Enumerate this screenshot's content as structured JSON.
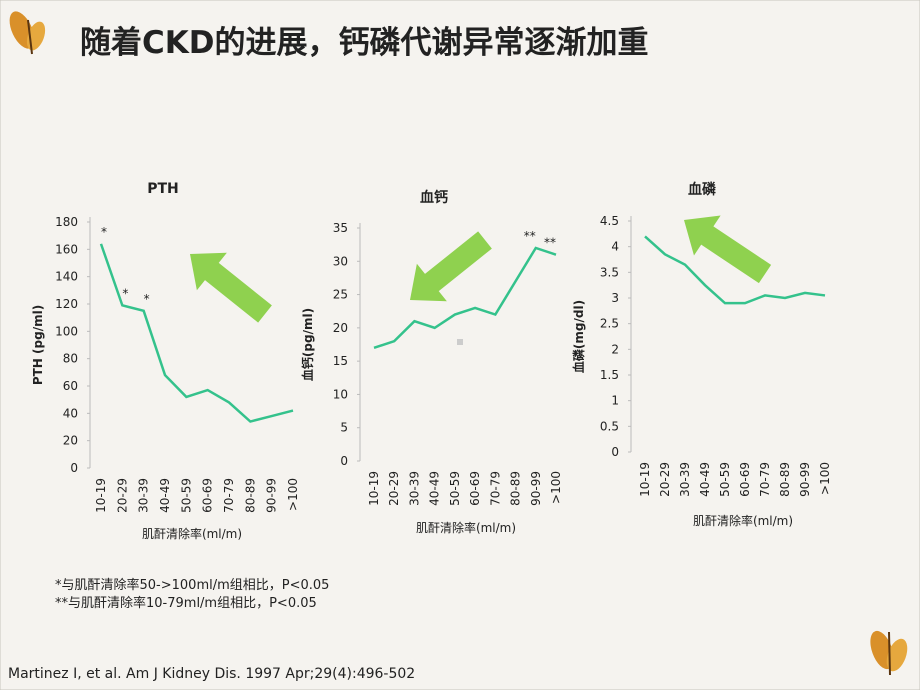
{
  "title": "随着CKD的进展，钙磷代谢异常逐渐加重",
  "footnotes": [
    "*与肌酐清除率50->100ml/m组相比，P<0.05",
    "**与肌酐清除率10-79ml/m组相比，P<0.05"
  ],
  "citation": "Martinez  I, et al. Am J Kidney Dis. 1997 Apr;29(4):496-502",
  "chart_data": [
    {
      "type": "line",
      "title": "PTH",
      "x_label": "肌酐清除率(ml/m)",
      "y_label": "PTH (pg/ml)",
      "color": "#34c28c",
      "categories": [
        "10-19",
        "20-29",
        "30-39",
        "40-49",
        "50-59",
        "60-69",
        "70-79",
        "80-89",
        "90-99",
        ">100"
      ],
      "values": [
        164,
        119,
        115,
        68,
        52,
        57,
        48,
        34,
        38,
        42
      ],
      "annotations": [
        "*",
        "*",
        "*",
        null,
        null,
        null,
        null,
        null,
        null,
        null
      ],
      "ylim": [
        0,
        180
      ],
      "yticks": [
        0,
        20,
        40,
        60,
        80,
        100,
        120,
        140,
        160,
        180
      ]
    },
    {
      "type": "line",
      "title": "血钙",
      "x_label": "肌酐清除率(ml/m)",
      "y_label": "血钙(pg/ml)",
      "color": "#34c28c",
      "categories": [
        "10-19",
        "20-29",
        "30-39",
        "40-49",
        "50-59",
        "60-69",
        "70-79",
        "80-89",
        "90-99",
        ">100"
      ],
      "values": [
        17,
        18,
        21,
        20,
        22,
        23,
        22,
        27,
        32,
        31
      ],
      "annotations": [
        null,
        null,
        null,
        null,
        null,
        null,
        null,
        null,
        "**",
        "**"
      ],
      "ylim": [
        0,
        35
      ],
      "yticks": [
        0,
        5,
        10,
        15,
        20,
        25,
        30,
        35
      ]
    },
    {
      "type": "line",
      "title": "血磷",
      "x_label": "肌酐清除率(ml/m)",
      "y_label": "血磷(mg/dl)",
      "color": "#34c28c",
      "categories": [
        "10-19",
        "20-29",
        "30-39",
        "40-49",
        "50-59",
        "60-69",
        "70-79",
        "80-89",
        "90-99",
        ">100"
      ],
      "values": [
        4.2,
        3.85,
        3.65,
        3.25,
        2.9,
        2.9,
        3.05,
        3.0,
        3.1,
        3.05
      ],
      "annotations": [
        null,
        null,
        null,
        null,
        null,
        null,
        null,
        null,
        null,
        null
      ],
      "ylim": [
        0,
        4.5
      ],
      "yticks": [
        0,
        0.5,
        1,
        1.5,
        2,
        2.5,
        3,
        3.5,
        4,
        4.5
      ]
    }
  ]
}
